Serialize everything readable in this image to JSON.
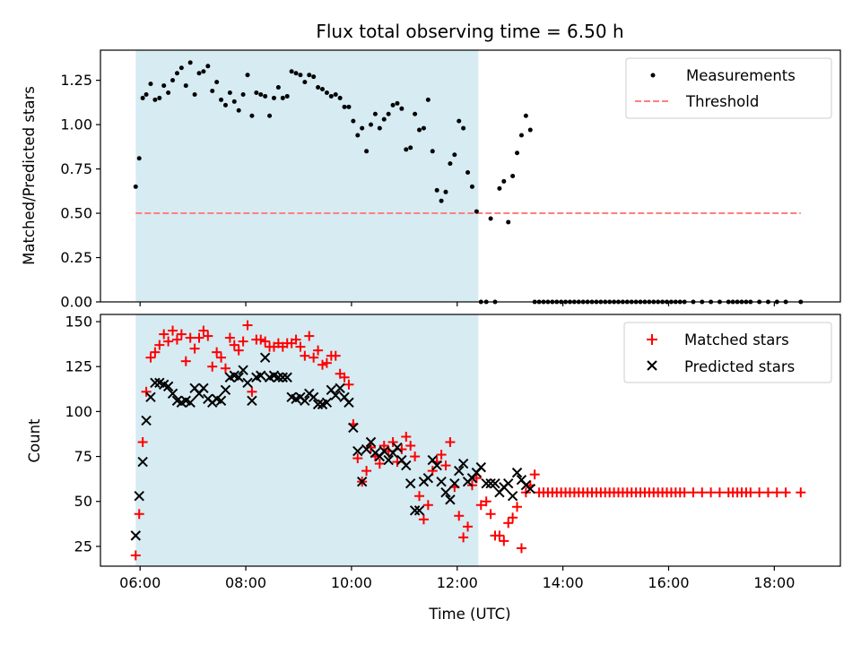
{
  "colors": {
    "measurements": "#000000",
    "threshold": "#ff7f7f",
    "matched": "#ff0000",
    "predicted": "#000000",
    "shade": "#add8e6"
  },
  "chart_data": [
    {
      "type": "scatter",
      "title": "Flux total observing time = 6.50 h",
      "ylabel": "Matched/Predicted stars",
      "xlabel": "",
      "xlim": [
        "05:15",
        "19:15"
      ],
      "ylim": [
        0,
        1.42
      ],
      "yticks": [
        "0.00",
        "0.25",
        "0.50",
        "0.75",
        "1.00",
        "1.25"
      ],
      "shaded_span": [
        "05:55",
        "12:24"
      ],
      "legend": "top-right",
      "threshold": {
        "name": "Threshold",
        "value": 0.5,
        "x": [
          "05:55",
          "18:30"
        ]
      },
      "series": [
        {
          "name": "Measurements",
          "x": [
            "05:55",
            "05:59",
            "06:03",
            "06:07",
            "06:12",
            "06:17",
            "06:22",
            "06:27",
            "06:32",
            "06:37",
            "06:42",
            "06:47",
            "06:52",
            "06:57",
            "07:02",
            "07:07",
            "07:12",
            "07:17",
            "07:22",
            "07:27",
            "07:32",
            "07:37",
            "07:42",
            "07:47",
            "07:52",
            "07:57",
            "08:02",
            "08:07",
            "08:12",
            "08:17",
            "08:22",
            "08:27",
            "08:32",
            "08:37",
            "08:42",
            "08:47",
            "08:52",
            "08:57",
            "09:02",
            "09:07",
            "09:12",
            "09:17",
            "09:22",
            "09:27",
            "09:32",
            "09:37",
            "09:42",
            "09:47",
            "09:52",
            "09:57",
            "10:02",
            "10:07",
            "10:12",
            "10:17",
            "10:22",
            "10:27",
            "10:32",
            "10:37",
            "10:42",
            "10:47",
            "10:52",
            "10:57",
            "11:02",
            "11:07",
            "11:12",
            "11:17",
            "11:22",
            "11:27",
            "11:32",
            "11:37",
            "11:42",
            "11:47",
            "11:52",
            "11:57",
            "12:02",
            "12:07",
            "12:12",
            "12:17",
            "12:22",
            "12:27",
            "12:33",
            "12:38",
            "12:48",
            "12:53",
            "12:58",
            "13:03",
            "13:08",
            "13:13",
            "13:18",
            "13:23",
            "12:43",
            "13:28",
            "13:33",
            "13:38",
            "13:43",
            "13:48",
            "13:53",
            "13:58",
            "14:03",
            "14:08",
            "14:13",
            "14:18",
            "14:23",
            "14:28",
            "14:33",
            "14:38",
            "14:43",
            "14:48",
            "14:53",
            "14:58",
            "15:03",
            "15:08",
            "15:13",
            "15:18",
            "15:23",
            "15:28",
            "15:33",
            "15:38",
            "15:43",
            "15:48",
            "15:53",
            "15:58",
            "16:03",
            "16:08",
            "16:13",
            "16:18",
            "16:28",
            "16:38",
            "16:48",
            "16:58",
            "17:08",
            "17:13",
            "17:18",
            "17:23",
            "17:28",
            "17:33",
            "17:43",
            "17:53",
            "18:03",
            "18:13",
            "18:30"
          ],
          "y": [
            0.65,
            0.81,
            1.15,
            1.17,
            1.23,
            1.14,
            1.15,
            1.22,
            1.18,
            1.25,
            1.29,
            1.32,
            1.22,
            1.35,
            1.17,
            1.29,
            1.3,
            1.33,
            1.19,
            1.24,
            1.14,
            1.11,
            1.18,
            1.13,
            1.08,
            1.17,
            1.28,
            1.05,
            1.18,
            1.17,
            1.16,
            1.05,
            1.15,
            1.21,
            1.15,
            1.16,
            1.3,
            1.29,
            1.28,
            1.24,
            1.28,
            1.27,
            1.21,
            1.2,
            1.18,
            1.16,
            1.17,
            1.15,
            1.1,
            1.1,
            1.02,
            0.94,
            0.98,
            0.85,
            1.0,
            1.06,
            0.98,
            1.03,
            1.06,
            1.11,
            1.12,
            1.09,
            0.86,
            0.87,
            1.06,
            0.97,
            0.98,
            1.14,
            0.85,
            0.63,
            0.57,
            0.62,
            0.78,
            0.83,
            1.02,
            0.98,
            0.73,
            0.65,
            0.51,
            0.0,
            0.0,
            0.47,
            0.64,
            0.68,
            0.45,
            0.71,
            0.84,
            0.94,
            1.05,
            0.97,
            0.0,
            0.0,
            0.0,
            0.0,
            0.0,
            0.0,
            0.0,
            0.0,
            0.0,
            0.0,
            0.0,
            0.0,
            0.0,
            0.0,
            0.0,
            0.0,
            0.0,
            0.0,
            0.0,
            0.0,
            0.0,
            0.0,
            0.0,
            0.0,
            0.0,
            0.0,
            0.0,
            0.0,
            0.0,
            0.0,
            0.0,
            0.0,
            0.0,
            0.0,
            0.0,
            0.0,
            0.0,
            0.0,
            0.0,
            0.0,
            0.0,
            0.0,
            0.0,
            0.0,
            0.0,
            0.0,
            0.0,
            0.0,
            0.0,
            0.0,
            0.0
          ]
        }
      ]
    },
    {
      "type": "scatter",
      "title": "",
      "ylabel": "Count",
      "xlabel": "Time (UTC)",
      "xlim": [
        "05:15",
        "19:15"
      ],
      "ylim": [
        14,
        154
      ],
      "yticks": [
        "25",
        "50",
        "75",
        "100",
        "125",
        "150"
      ],
      "xticks": [
        "06:00",
        "08:00",
        "10:00",
        "12:00",
        "14:00",
        "16:00",
        "18:00"
      ],
      "shaded_span": [
        "05:55",
        "12:24"
      ],
      "legend": "top-right",
      "series": [
        {
          "name": "Matched stars",
          "x": [
            "05:55",
            "05:59",
            "06:03",
            "06:07",
            "06:12",
            "06:17",
            "06:22",
            "06:27",
            "06:32",
            "06:37",
            "06:42",
            "06:47",
            "06:52",
            "06:57",
            "07:02",
            "07:07",
            "07:12",
            "07:17",
            "07:22",
            "07:27",
            "07:32",
            "07:37",
            "07:42",
            "07:47",
            "07:52",
            "07:57",
            "08:02",
            "08:07",
            "08:12",
            "08:17",
            "08:22",
            "08:27",
            "08:32",
            "08:37",
            "08:42",
            "08:47",
            "08:52",
            "08:57",
            "09:02",
            "09:07",
            "09:12",
            "09:17",
            "09:22",
            "09:27",
            "09:32",
            "09:37",
            "09:42",
            "09:47",
            "09:52",
            "09:57",
            "10:02",
            "10:07",
            "10:12",
            "10:17",
            "10:22",
            "10:27",
            "10:32",
            "10:37",
            "10:42",
            "10:47",
            "10:52",
            "10:57",
            "11:02",
            "11:07",
            "11:12",
            "11:17",
            "11:22",
            "11:27",
            "11:32",
            "11:37",
            "11:42",
            "11:47",
            "11:52",
            "11:57",
            "12:02",
            "12:07",
            "12:12",
            "12:17",
            "12:22",
            "12:27",
            "12:33",
            "12:38",
            "12:43",
            "12:48",
            "12:53",
            "12:58",
            "13:03",
            "13:08",
            "13:13",
            "13:18",
            "13:23",
            "13:28",
            "13:33",
            "13:38",
            "13:43",
            "13:48",
            "13:53",
            "13:58",
            "14:03",
            "14:08",
            "14:13",
            "14:18",
            "14:23",
            "14:28",
            "14:33",
            "14:38",
            "14:43",
            "14:48",
            "14:53",
            "14:58",
            "15:03",
            "15:08",
            "15:13",
            "15:18",
            "15:23",
            "15:28",
            "15:33",
            "15:38",
            "15:43",
            "15:48",
            "15:53",
            "15:58",
            "16:03",
            "16:08",
            "16:13",
            "16:18",
            "16:28",
            "16:38",
            "16:48",
            "16:58",
            "17:08",
            "17:13",
            "17:18",
            "17:23",
            "17:28",
            "17:33",
            "17:43",
            "17:53",
            "18:03",
            "18:13",
            "18:30"
          ],
          "y": [
            20,
            43,
            83,
            111,
            130,
            133,
            137,
            143,
            139,
            145,
            140,
            143,
            128,
            141,
            135,
            141,
            145,
            142,
            125,
            133,
            130,
            124,
            141,
            137,
            134,
            139,
            148,
            111,
            140,
            140,
            139,
            136,
            136,
            138,
            136,
            138,
            138,
            140,
            136,
            131,
            142,
            130,
            134,
            126,
            127,
            131,
            131,
            121,
            119,
            115,
            93,
            74,
            61,
            67,
            80,
            75,
            71,
            81,
            78,
            83,
            72,
            79,
            86,
            81,
            75,
            53,
            40,
            48,
            67,
            72,
            76,
            70,
            83,
            58,
            42,
            30,
            36,
            59,
            63,
            48,
            50,
            43,
            31,
            31,
            28,
            38,
            41,
            47,
            24,
            55,
            59,
            65,
            55,
            55,
            55,
            55,
            55,
            55,
            55,
            55,
            55,
            55,
            55,
            55,
            55,
            55,
            55,
            55,
            55,
            55,
            55,
            55,
            55,
            55,
            55,
            55,
            55,
            55,
            55,
            55,
            55,
            55,
            55,
            55,
            55,
            55,
            55,
            55,
            55,
            55,
            55,
            55,
            55,
            55,
            55,
            55,
            55,
            55,
            55,
            55,
            55
          ]
        },
        {
          "name": "Predicted stars",
          "x": [
            "05:55",
            "05:59",
            "06:03",
            "06:07",
            "06:12",
            "06:17",
            "06:22",
            "06:27",
            "06:32",
            "06:37",
            "06:42",
            "06:47",
            "06:52",
            "06:57",
            "07:02",
            "07:07",
            "07:12",
            "07:17",
            "07:22",
            "07:27",
            "07:32",
            "07:37",
            "07:42",
            "07:47",
            "07:52",
            "07:57",
            "08:02",
            "08:07",
            "08:12",
            "08:17",
            "08:22",
            "08:27",
            "08:32",
            "08:37",
            "08:42",
            "08:47",
            "08:52",
            "08:57",
            "09:02",
            "09:07",
            "09:12",
            "09:17",
            "09:22",
            "09:27",
            "09:32",
            "09:37",
            "09:42",
            "09:47",
            "09:52",
            "09:57",
            "10:02",
            "10:07",
            "10:12",
            "10:17",
            "10:22",
            "10:27",
            "10:32",
            "10:37",
            "10:42",
            "10:47",
            "10:52",
            "10:57",
            "11:02",
            "11:07",
            "11:12",
            "11:17",
            "11:22",
            "11:27",
            "11:32",
            "11:37",
            "11:42",
            "11:47",
            "11:52",
            "11:57",
            "12:02",
            "12:07",
            "12:12",
            "12:17",
            "12:22",
            "12:27",
            "12:33",
            "12:38",
            "12:43",
            "12:48",
            "12:53",
            "12:58",
            "13:03",
            "13:08",
            "13:13",
            "13:18",
            "13:23"
          ],
          "y": [
            31,
            53,
            72,
            95,
            108,
            116,
            116,
            115,
            114,
            110,
            106,
            105,
            106,
            105,
            113,
            110,
            113,
            107,
            105,
            107,
            106,
            112,
            119,
            120,
            119,
            123,
            116,
            106,
            119,
            120,
            130,
            119,
            120,
            119,
            119,
            119,
            108,
            107,
            108,
            106,
            110,
            108,
            104,
            104,
            105,
            112,
            109,
            113,
            108,
            105,
            91,
            78,
            61,
            79,
            83,
            77,
            75,
            78,
            73,
            77,
            80,
            73,
            70,
            60,
            45,
            45,
            61,
            63,
            73,
            70,
            61,
            55,
            51,
            60,
            67,
            71,
            61,
            63,
            66,
            69,
            60,
            60,
            60,
            55,
            58,
            60,
            53,
            66,
            62,
            59,
            57
          ]
        }
      ]
    }
  ]
}
